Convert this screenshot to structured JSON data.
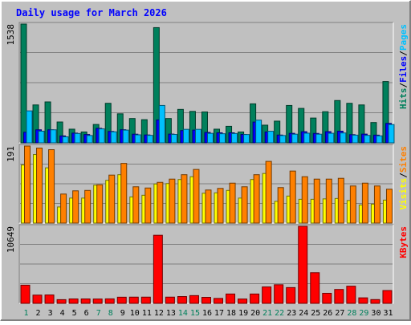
{
  "title": "Daily usage for March 2026",
  "colors": {
    "background": "#c0c0c0",
    "title": "#0000ff",
    "grid": "#808080",
    "hits": "#00805c",
    "files": "#0000ff",
    "pages": "#00c0ff",
    "visits": "#ffff00",
    "sites": "#ff8000",
    "kbytes": "#ff0000",
    "weekday_label": "#000000",
    "weekend_label": "#00805c"
  },
  "chart_data": [
    {
      "type": "bar",
      "panel": "top",
      "ymax_label": "1538",
      "ylim": [
        0,
        1538
      ],
      "categories": [
        "1",
        "2",
        "3",
        "4",
        "5",
        "6",
        "7",
        "8",
        "9",
        "10",
        "11",
        "12",
        "13",
        "14",
        "15",
        "16",
        "17",
        "18",
        "19",
        "20",
        "21",
        "22",
        "23",
        "24",
        "25",
        "26",
        "27",
        "28",
        "29",
        "30",
        "31"
      ],
      "weekend_days": [
        1,
        7,
        8,
        14,
        15,
        21,
        22,
        28,
        29
      ],
      "legend": [
        {
          "text": "Hits",
          "color_key": "hits"
        },
        {
          "text": "/",
          "color_key": "weekday_label"
        },
        {
          "text": "Files",
          "color_key": "files"
        },
        {
          "text": "/",
          "color_key": "weekday_label"
        },
        {
          "text": "Pages",
          "color_key": "pages"
        }
      ],
      "series": [
        {
          "name": "Hits",
          "color_key": "hits",
          "values": [
            1538,
            491,
            530,
            270,
            177,
            141,
            238,
            512,
            376,
            315,
            300,
            1492,
            315,
            433,
            407,
            400,
            177,
            214,
            141,
            505,
            229,
            281,
            484,
            446,
            321,
            403,
            548,
            512,
            491,
            263,
            794
          ]
        },
        {
          "name": "Files",
          "color_key": "files",
          "values": [
            137,
            169,
            169,
            90,
            126,
            108,
            188,
            148,
            170,
            112,
            102,
            297,
            113,
            159,
            165,
            135,
            130,
            130,
            109,
            269,
            141,
            101,
            123,
            144,
            122,
            145,
            151,
            106,
            113,
            100,
            252
          ]
        },
        {
          "name": "Pages",
          "color_key": "pages",
          "values": [
            414,
            151,
            169,
            78,
            121,
            95,
            181,
            143,
            165,
            104,
            97,
            484,
            109,
            175,
            175,
            123,
            118,
            121,
            108,
            294,
            150,
            95,
            112,
            125,
            112,
            124,
            128,
            100,
            97,
            91,
            237
          ]
        }
      ]
    },
    {
      "type": "bar",
      "panel": "middle",
      "ymax_label": "191",
      "ylim": [
        0,
        191
      ],
      "categories": [
        "1",
        "2",
        "3",
        "4",
        "5",
        "6",
        "7",
        "8",
        "9",
        "10",
        "11",
        "12",
        "13",
        "14",
        "15",
        "16",
        "17",
        "18",
        "19",
        "20",
        "21",
        "22",
        "23",
        "24",
        "25",
        "26",
        "27",
        "28",
        "29",
        "30",
        "31"
      ],
      "legend": [
        {
          "text": "Visits",
          "color_key": "visits"
        },
        {
          "text": "/",
          "color_key": "weekday_label"
        },
        {
          "text": "Sites",
          "color_key": "sites"
        }
      ],
      "series": [
        {
          "name": "Visits",
          "color_key": "visits",
          "values": [
            144,
            170,
            137,
            40,
            62,
            62,
            94,
            106,
            120,
            65,
            69,
            97,
            98,
            108,
            115,
            74,
            75,
            81,
            62,
            108,
            123,
            54,
            67,
            59,
            59,
            60,
            61,
            56,
            45,
            47,
            57
          ]
        },
        {
          "name": "Sites",
          "color_key": "sites",
          "values": [
            191,
            186,
            182,
            72,
            80,
            81,
            95,
            119,
            148,
            90,
            87,
            101,
            109,
            120,
            133,
            82,
            86,
            99,
            90,
            120,
            153,
            88,
            129,
            115,
            109,
            109,
            111,
            92,
            99,
            92,
            84
          ]
        }
      ]
    },
    {
      "type": "bar",
      "panel": "bottom",
      "ymax_label": "10649",
      "ylim": [
        0,
        10649
      ],
      "categories": [
        "1",
        "2",
        "3",
        "4",
        "5",
        "6",
        "7",
        "8",
        "9",
        "10",
        "11",
        "12",
        "13",
        "14",
        "15",
        "16",
        "17",
        "18",
        "19",
        "20",
        "21",
        "22",
        "23",
        "24",
        "25",
        "26",
        "27",
        "28",
        "29",
        "30",
        "31"
      ],
      "legend": [
        {
          "text": "KBytes",
          "color_key": "kbytes"
        }
      ],
      "series": [
        {
          "name": "KBytes",
          "color_key": "kbytes",
          "values": [
            2510,
            1140,
            1160,
            510,
            610,
            610,
            600,
            620,
            850,
            860,
            860,
            9410,
            860,
            940,
            1070,
            830,
            680,
            1290,
            600,
            1290,
            2270,
            2570,
            2180,
            10649,
            4240,
            1390,
            1920,
            2370,
            760,
            520,
            1770
          ]
        }
      ]
    }
  ]
}
